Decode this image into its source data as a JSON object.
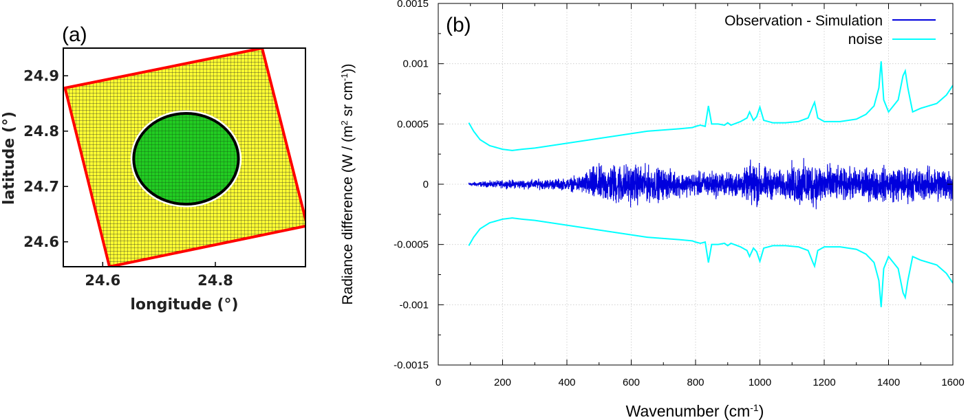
{
  "panel_a": {
    "label": "(a)",
    "xlabel": "longitude (°)",
    "ylabel": "latitude (°)",
    "xticks": [
      "24.6",
      "24.8"
    ],
    "yticks": [
      "24.9",
      "24.8",
      "24.7",
      "24.6"
    ],
    "colors": {
      "footprint_grid": "#ffff33",
      "circle_fill": "#22cc22",
      "outline_square": "#ff0000",
      "circle_ring": "#000000"
    }
  },
  "chart_data": [
    {
      "panel": "a",
      "type": "scatter",
      "title": "(a)",
      "xlabel": "longitude (°)",
      "ylabel": "latitude (°)",
      "xlim": [
        24.53,
        24.96
      ],
      "ylim": [
        24.555,
        24.95
      ],
      "square_corners": [
        [
          24.533,
          24.878
        ],
        [
          24.883,
          24.95
        ],
        [
          24.963,
          24.629
        ],
        [
          24.612,
          24.555
        ]
      ],
      "circle": {
        "center": [
          24.748,
          24.75
        ],
        "radius_lon": 0.093,
        "radius_lat": 0.082
      }
    },
    {
      "panel": "b",
      "type": "line",
      "title": "(b)",
      "xlabel": "Wavenumber (cm-1)",
      "ylabel": "Radiance difference (W / (m2 sr cm-1))",
      "xlim": [
        0,
        1600
      ],
      "ylim": [
        -0.0015,
        0.0015
      ],
      "xticks": [
        "0",
        "200",
        "400",
        "600",
        "800",
        "1000",
        "1200",
        "1400",
        "1600"
      ],
      "yticks": [
        "0.0015",
        "0.001",
        "0.0005",
        "0",
        "-0.0005",
        "-0.001",
        "-0.0015"
      ],
      "grid": true,
      "legend": "top-right",
      "series": [
        {
          "name": "Observation - Simulation",
          "color": "#0000dd",
          "amplitude_envelope": {
            "x": [
              95,
              200,
              300,
              400,
              450,
              480,
              560,
              620,
              700,
              760,
              800,
              850,
              900,
              960,
              975,
              1000,
              1050,
              1090,
              1100,
              1150,
              1200,
              1250,
              1300,
              1350,
              1400,
              1450,
              1500,
              1550,
              1600
            ],
            "y": [
              2e-05,
              4e-05,
              5e-05,
              6e-05,
              0.0001,
              0.00018,
              0.00022,
              0.0002,
              0.00016,
              0.00012,
              0.00012,
              0.00014,
              0.00012,
              0.00016,
              0.00026,
              0.0002,
              0.00014,
              0.00014,
              0.00022,
              0.00024,
              0.00022,
              0.00016,
              0.00017,
              0.00017,
              0.00018,
              0.00019,
              0.00017,
              0.00018,
              0.00019
            ]
          }
        },
        {
          "name": "noise",
          "color": "#00ffff",
          "x": [
            95,
            110,
            130,
            160,
            200,
            230,
            260,
            300,
            350,
            400,
            450,
            500,
            550,
            600,
            650,
            700,
            750,
            790,
            800,
            815,
            830,
            840,
            850,
            870,
            890,
            900,
            910,
            940,
            960,
            968,
            980,
            990,
            1000,
            1012,
            1040,
            1080,
            1120,
            1150,
            1165,
            1170,
            1180,
            1200,
            1250,
            1300,
            1330,
            1355,
            1370,
            1377,
            1385,
            1400,
            1430,
            1445,
            1452,
            1460,
            1475,
            1500,
            1550,
            1580,
            1600
          ],
          "y": [
            0.00051,
            0.00044,
            0.00037,
            0.00032,
            0.00029,
            0.00028,
            0.00029,
            0.0003,
            0.00032,
            0.00034,
            0.00036,
            0.00038,
            0.0004,
            0.00042,
            0.00044,
            0.00045,
            0.00046,
            0.00047,
            0.00048,
            0.00049,
            0.00048,
            0.00065,
            0.0005,
            0.0005,
            0.00049,
            0.00051,
            0.00049,
            0.00052,
            0.00055,
            0.0006,
            0.00053,
            0.00056,
            0.00064,
            0.00053,
            0.00051,
            0.00051,
            0.00052,
            0.00055,
            0.00065,
            0.00068,
            0.00055,
            0.00052,
            0.00052,
            0.00054,
            0.00058,
            0.00065,
            0.0008,
            0.00102,
            0.0007,
            0.0006,
            0.0007,
            0.0009,
            0.00094,
            0.0008,
            0.0006,
            0.00063,
            0.00067,
            0.00074,
            0.00082
          ]
        }
      ]
    }
  ]
}
